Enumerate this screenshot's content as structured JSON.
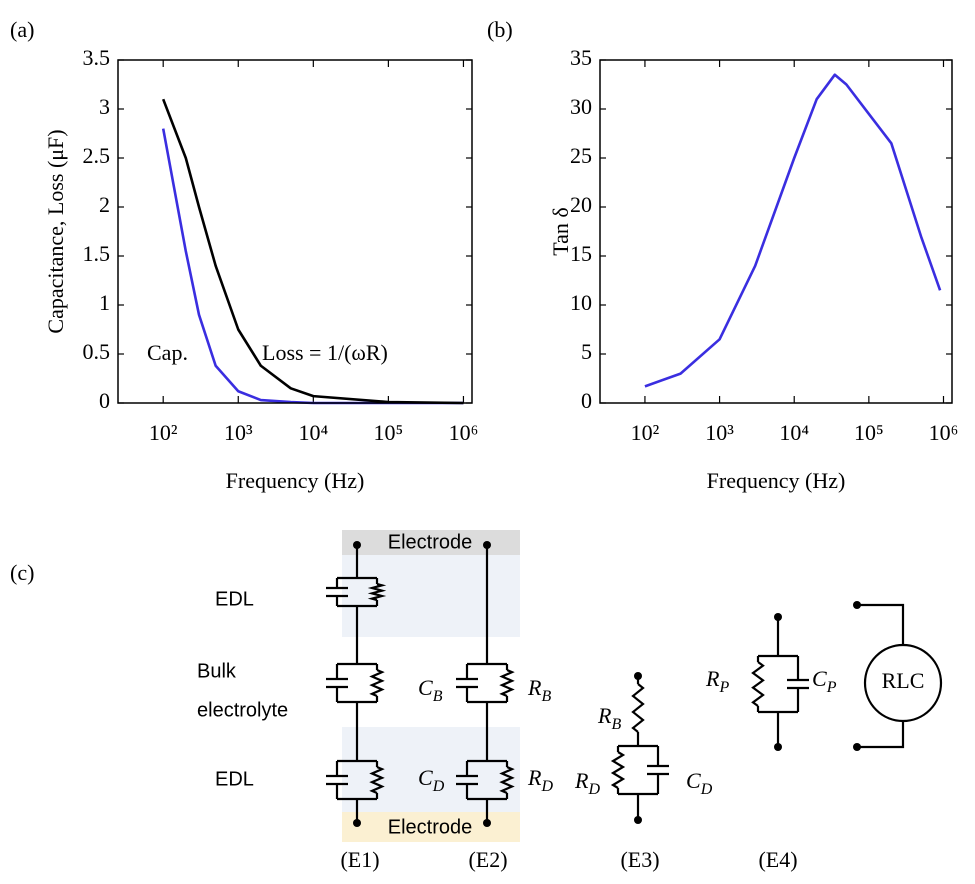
{
  "chart_data": [
    {
      "type": "line",
      "panel_label": "(a)",
      "xlabel": "Frequency (Hz)",
      "ylabel": "Capacitance, Loss (μF)",
      "xscale": "log",
      "xlim": [
        25,
        1300000
      ],
      "xticks": [
        {
          "value": 100,
          "label": "10²"
        },
        {
          "value": 1000,
          "label": "10³"
        },
        {
          "value": 10000,
          "label": "10⁴"
        },
        {
          "value": 100000,
          "label": "10⁵"
        },
        {
          "value": 1000000,
          "label": "10⁶"
        }
      ],
      "ylim": [
        0,
        3.5
      ],
      "yticks": [
        0,
        0.5,
        1,
        1.5,
        2,
        2.5,
        3,
        3.5
      ],
      "x": [
        100,
        200,
        300,
        500,
        1000,
        2000,
        5000,
        10000,
        100000,
        1000000
      ],
      "series": [
        {
          "color": "#3a2ee0",
          "values": [
            2.8,
            1.55,
            0.9,
            0.38,
            0.12,
            0.03,
            0.01,
            0,
            0,
            0
          ]
        },
        {
          "color": "#000000",
          "values": [
            3.1,
            2.5,
            2.0,
            1.4,
            0.75,
            0.38,
            0.15,
            0.07,
            0.01,
            0
          ]
        }
      ],
      "annotations": [
        "Cap.",
        "Loss = 1/(ωR)"
      ]
    },
    {
      "type": "line",
      "panel_label": "(b)",
      "xlabel": "Frequency (Hz)",
      "ylabel": "Tan δ",
      "xscale": "log",
      "xlim": [
        25,
        1300000
      ],
      "xticks": [
        {
          "value": 100,
          "label": "10²"
        },
        {
          "value": 1000,
          "label": "10³"
        },
        {
          "value": 10000,
          "label": "10⁴"
        },
        {
          "value": 100000,
          "label": "10⁵"
        },
        {
          "value": 1000000,
          "label": "10⁶"
        }
      ],
      "ylim": [
        0,
        35
      ],
      "yticks": [
        0,
        5,
        10,
        15,
        20,
        25,
        30,
        35
      ],
      "x": [
        100,
        300,
        1000,
        3000,
        10000,
        20000,
        35000,
        50000,
        100000,
        200000,
        500000,
        900000
      ],
      "series": [
        {
          "color": "#3a2ee0",
          "values": [
            1.7,
            3,
            6.5,
            14,
            25,
            31,
            33.5,
            32.5,
            29.5,
            26.5,
            17,
            11.5
          ]
        }
      ],
      "annotations": []
    }
  ],
  "diagram": {
    "panel_label": "(c)",
    "electrode_top": "Electrode",
    "electrode_bottom": "Electrode",
    "edl_top": "EDL",
    "bulk": [
      "Bulk",
      "electrolyte"
    ],
    "edl_bottom": "EDL",
    "symbols": [
      {
        "symbol": "C",
        "subscript": "B"
      },
      {
        "symbol": "R",
        "subscript": "B"
      },
      {
        "symbol": "C",
        "subscript": "D"
      },
      {
        "symbol": "R",
        "subscript": "D"
      },
      {
        "symbol": "R",
        "subscript": "B"
      },
      {
        "symbol": "R",
        "subscript": "D"
      },
      {
        "symbol": "C",
        "subscript": "D"
      },
      {
        "symbol": "R",
        "subscript": "P"
      },
      {
        "symbol": "C",
        "subscript": "P"
      }
    ],
    "rlc": "RLC",
    "circuit_labels": [
      "(E1)",
      "(E2)",
      "(E3)",
      "(E4)"
    ]
  }
}
